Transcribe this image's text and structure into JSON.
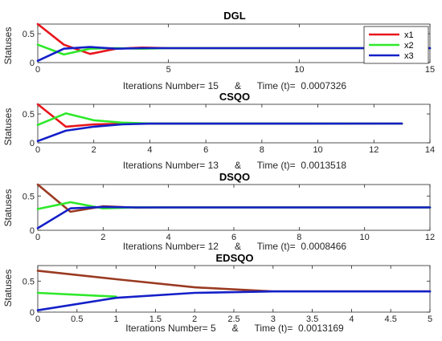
{
  "chart_data": [
    {
      "type": "line",
      "title": "DGL",
      "ylabel": "Statuses",
      "xlabel_text": "Iterations Number= 15      &      Time (t)=  0.0007326",
      "xlim": [
        0,
        15
      ],
      "ylim": [
        0,
        0.667
      ],
      "xticks": [
        0,
        5,
        10,
        15
      ],
      "yticks": [
        0,
        0.5
      ],
      "legend": {
        "position": "top-right",
        "entries": [
          "x1",
          "x2",
          "x3"
        ]
      },
      "series": [
        {
          "name": "x1",
          "color": "#e8161c",
          "x": [
            0,
            1,
            2,
            3,
            4,
            5,
            15
          ],
          "y": [
            0.667,
            0.31,
            0.15,
            0.24,
            0.26,
            0.25,
            0.25
          ]
        },
        {
          "name": "x2",
          "color": "#2ee82a",
          "x": [
            0,
            1,
            2,
            3,
            4,
            5,
            15
          ],
          "y": [
            0.31,
            0.14,
            0.24,
            0.25,
            0.24,
            0.25,
            0.25
          ]
        },
        {
          "name": "x3",
          "color": "#1420c8",
          "x": [
            0,
            1,
            2,
            3,
            4,
            5,
            15
          ],
          "y": [
            0.03,
            0.24,
            0.27,
            0.24,
            0.25,
            0.25,
            0.25
          ]
        }
      ]
    },
    {
      "type": "line",
      "title": "CSQO",
      "ylabel": "Statuses",
      "xlabel_text": "Iterations Number= 13      &      Time (t)=  0.0013518",
      "xlim": [
        0,
        14
      ],
      "ylim": [
        0,
        0.667
      ],
      "xticks": [
        0,
        2,
        4,
        6,
        8,
        10,
        12,
        14
      ],
      "yticks": [
        0,
        0.5
      ],
      "series": [
        {
          "name": "x1",
          "color": "#e8161c",
          "x": [
            0,
            1,
            2,
            3,
            4,
            13
          ],
          "y": [
            0.667,
            0.28,
            0.32,
            0.33,
            0.333,
            0.333
          ]
        },
        {
          "name": "x2",
          "color": "#2ee82a",
          "x": [
            0,
            1,
            2,
            3,
            4,
            13
          ],
          "y": [
            0.31,
            0.51,
            0.39,
            0.35,
            0.335,
            0.333
          ]
        },
        {
          "name": "x3",
          "color": "#1420c8",
          "x": [
            0,
            1,
            2,
            3,
            4,
            13
          ],
          "y": [
            0.03,
            0.21,
            0.28,
            0.32,
            0.332,
            0.333
          ]
        }
      ]
    },
    {
      "type": "line",
      "title": "DSQO",
      "ylabel": "Statuses",
      "xlabel_text": "Iterations Number= 12      &      Time (t)=  0.0008466",
      "xlim": [
        0,
        12
      ],
      "ylim": [
        0,
        0.667
      ],
      "xticks": [
        0,
        2,
        4,
        6,
        8,
        10,
        12
      ],
      "yticks": [
        0,
        0.5
      ],
      "series": [
        {
          "name": "x1",
          "color": "#9a3a22",
          "x": [
            0,
            1,
            2,
            3,
            4,
            12
          ],
          "y": [
            0.667,
            0.27,
            0.35,
            0.33,
            0.333,
            0.333
          ]
        },
        {
          "name": "x2",
          "color": "#2ee82a",
          "x": [
            0,
            1,
            2,
            3,
            4,
            12
          ],
          "y": [
            0.31,
            0.41,
            0.32,
            0.335,
            0.333,
            0.333
          ]
        },
        {
          "name": "x3",
          "color": "#1420c8",
          "x": [
            0,
            1,
            2,
            3,
            4,
            12
          ],
          "y": [
            0.03,
            0.32,
            0.34,
            0.333,
            0.333,
            0.333
          ]
        }
      ]
    },
    {
      "type": "line",
      "title": "EDSQO",
      "ylabel": "Statuses",
      "xlabel_text": "Iterations Number= 5      &      Time (t)=  0.0013169",
      "xlim": [
        0,
        5
      ],
      "ylim": [
        0,
        0.75
      ],
      "xticks": [
        0,
        0.5,
        1,
        1.5,
        2,
        2.5,
        3,
        3.5,
        4,
        4.5,
        5
      ],
      "yticks": [
        0,
        0.5
      ],
      "series": [
        {
          "name": "x1",
          "color": "#9a3a22",
          "x": [
            0,
            1,
            2,
            3,
            5
          ],
          "y": [
            0.667,
            0.53,
            0.4,
            0.333,
            0.333
          ]
        },
        {
          "name": "x2",
          "color": "#2ee82a",
          "x": [
            0,
            1
          ],
          "y": [
            0.31,
            0.25
          ]
        },
        {
          "name": "x3",
          "color": "#1420c8",
          "x": [
            0,
            1,
            2,
            3,
            5
          ],
          "y": [
            0.03,
            0.23,
            0.31,
            0.333,
            0.333
          ]
        }
      ]
    }
  ]
}
